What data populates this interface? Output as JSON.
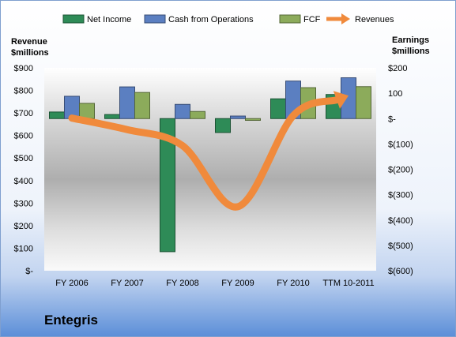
{
  "company_name": "Entegris",
  "chart_data": {
    "type": "bar",
    "categories": [
      "FY 2006",
      "FY 2007",
      "FY 2008",
      "FY 2009",
      "FY 2010",
      "TTM 10-2011"
    ],
    "left_axis": {
      "label_line1": "Revenue",
      "label_line2": "$millions",
      "ylim": [
        0,
        900
      ],
      "ticks": [
        "$-",
        "$100",
        "$200",
        "$300",
        "$400",
        "$500",
        "$600",
        "$700",
        "$800",
        "$900"
      ]
    },
    "right_axis": {
      "label_line1": "Earnings",
      "label_line2": "$millions",
      "ylim": [
        -600,
        200
      ],
      "ticks": [
        "$(600)",
        "$(500)",
        "$(400)",
        "$(300)",
        "$(200)",
        "$(100)",
        "$-",
        "100",
        "$200"
      ]
    },
    "series": [
      {
        "name": "Net Income",
        "axis": "right",
        "type": "bar",
        "color": "#2E8B57",
        "values": [
          26,
          16,
          -525,
          -55,
          78,
          95
        ]
      },
      {
        "name": "Cash from Operations",
        "axis": "right",
        "type": "bar",
        "color": "#5B7FC1",
        "values": [
          88,
          125,
          56,
          10,
          148,
          161
        ]
      },
      {
        "name": "FCF",
        "axis": "right",
        "type": "bar",
        "color": "#8CAB5B",
        "values": [
          60,
          103,
          28,
          -7,
          122,
          126
        ]
      },
      {
        "name": "Revenues",
        "axis": "left",
        "type": "line",
        "color": "#F08A3C",
        "values": [
          677,
          626,
          555,
          284,
          688,
          777
        ]
      }
    ],
    "legend_position": "top",
    "grid": false
  }
}
